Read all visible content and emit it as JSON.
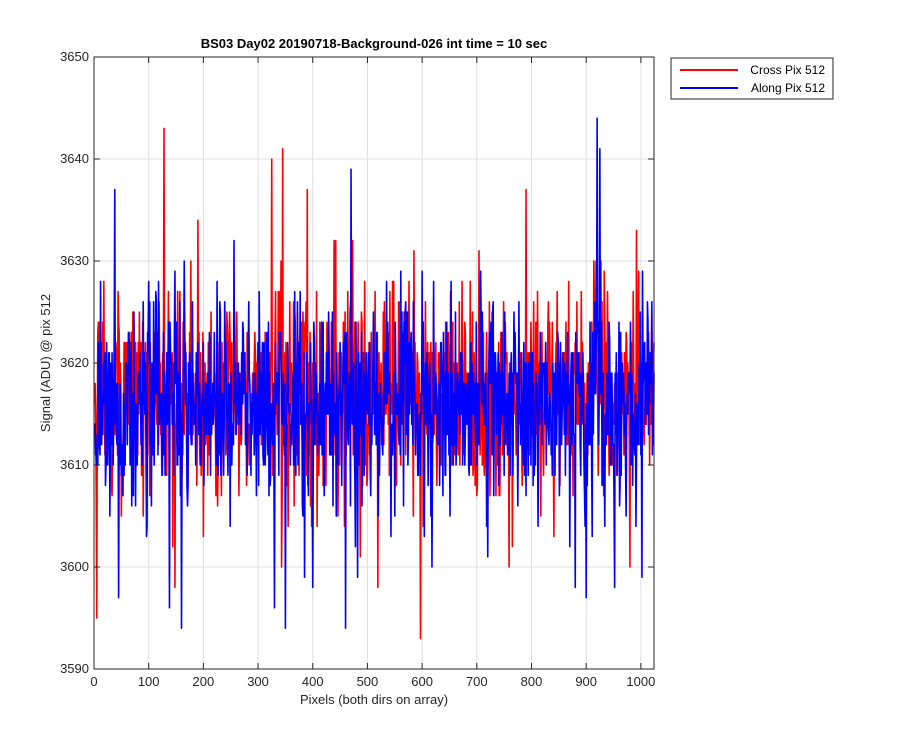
{
  "chart_data": {
    "type": "line",
    "title": "BS03 Day02 20190718-Background-026 int time = 10 sec",
    "xlabel": "Pixels (both dirs on array)",
    "ylabel": "Signal (ADU) @ pix 512",
    "xlim": [
      0,
      1024
    ],
    "ylim": [
      3590,
      3650
    ],
    "xticks": [
      0,
      100,
      200,
      300,
      400,
      500,
      600,
      700,
      800,
      900,
      1000
    ],
    "yticks": [
      3590,
      3600,
      3610,
      3620,
      3630,
      3640,
      3650
    ],
    "grid": true,
    "legend_position": "outside-top-right",
    "series": [
      {
        "name": "Cross Pix 512",
        "color": "#ff0000",
        "mean": 3617,
        "noise_note": "",
        "peaks": [
          {
            "x": 5,
            "y": 3595
          },
          {
            "x": 128,
            "y": 3643
          },
          {
            "x": 138,
            "y": 3599
          },
          {
            "x": 148,
            "y": 3598
          },
          {
            "x": 190,
            "y": 3634
          },
          {
            "x": 200,
            "y": 3603
          },
          {
            "x": 325,
            "y": 3640
          },
          {
            "x": 345,
            "y": 3641
          },
          {
            "x": 390,
            "y": 3637
          },
          {
            "x": 597,
            "y": 3593
          },
          {
            "x": 790,
            "y": 3637
          },
          {
            "x": 980,
            "y": 3600
          }
        ]
      },
      {
        "name": "Along Pix 512",
        "color": "#0000ff",
        "mean": 3616,
        "peaks": [
          {
            "x": 38,
            "y": 3637
          },
          {
            "x": 45,
            "y": 3597
          },
          {
            "x": 138,
            "y": 3596
          },
          {
            "x": 160,
            "y": 3594
          },
          {
            "x": 330,
            "y": 3596
          },
          {
            "x": 350,
            "y": 3594
          },
          {
            "x": 385,
            "y": 3599
          },
          {
            "x": 400,
            "y": 3598
          },
          {
            "x": 460,
            "y": 3594
          },
          {
            "x": 470,
            "y": 3639
          },
          {
            "x": 920,
            "y": 3644
          },
          {
            "x": 925,
            "y": 3641
          },
          {
            "x": 880,
            "y": 3598
          },
          {
            "x": 900,
            "y": 3597
          }
        ]
      }
    ]
  }
}
